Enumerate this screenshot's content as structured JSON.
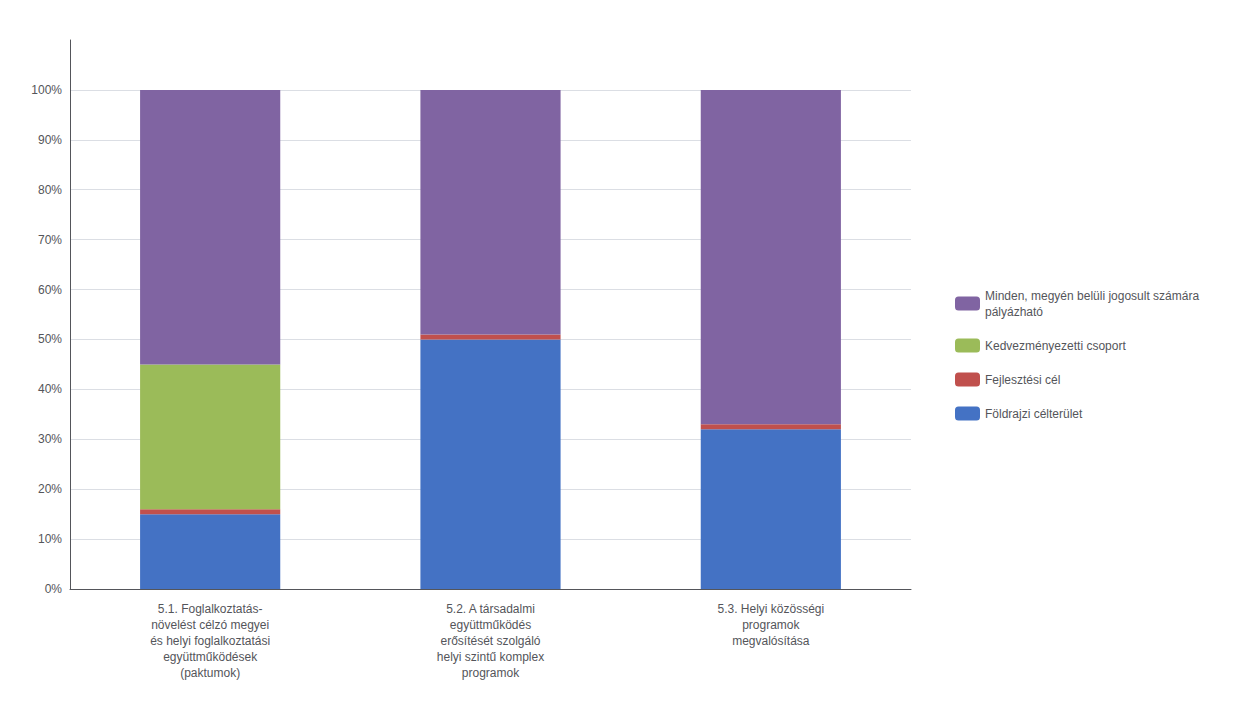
{
  "chart_data": {
    "type": "bar",
    "stacked": true,
    "categories": [
      "5.1. Foglalkoztatás-\nnövelést célzó megyei\nés helyi foglalkoztatási\negyüttműködések\n(paktumok)",
      "5.2. A társadalmi\negyüttműködés\nerősítését szolgáló\nhelyi szintű komplex\nprogramok",
      "5.3. Helyi közösségi\nprogramok\nmegvalósítása"
    ],
    "series": [
      {
        "name": "Földrajzi célterület",
        "color": "#4472C4",
        "values": [
          15,
          50,
          32
        ]
      },
      {
        "name": "Fejlesztési cél",
        "color": "#C0504D",
        "values": [
          1,
          1,
          1
        ]
      },
      {
        "name": "Kedvezményezetti csoport",
        "color": "#9BBB59",
        "values": [
          29,
          0,
          0
        ]
      },
      {
        "name": "Minden, megyén belüli jogosult számára\npályázható",
        "color": "#8064A2",
        "values": [
          55,
          49,
          67
        ]
      }
    ],
    "ylim": [
      0,
      110
    ],
    "yticks": [
      {
        "value": 0,
        "label": "0%"
      },
      {
        "value": 10,
        "label": "10%"
      },
      {
        "value": 20,
        "label": "20%"
      },
      {
        "value": 30,
        "label": "30%"
      },
      {
        "value": 40,
        "label": "40%"
      },
      {
        "value": 50,
        "label": "50%"
      },
      {
        "value": 60,
        "label": "60%"
      },
      {
        "value": 70,
        "label": "70%"
      },
      {
        "value": 80,
        "label": "80%"
      },
      {
        "value": 90,
        "label": "90%"
      },
      {
        "value": 100,
        "label": "100%"
      }
    ],
    "grid": true,
    "legend": "right"
  }
}
